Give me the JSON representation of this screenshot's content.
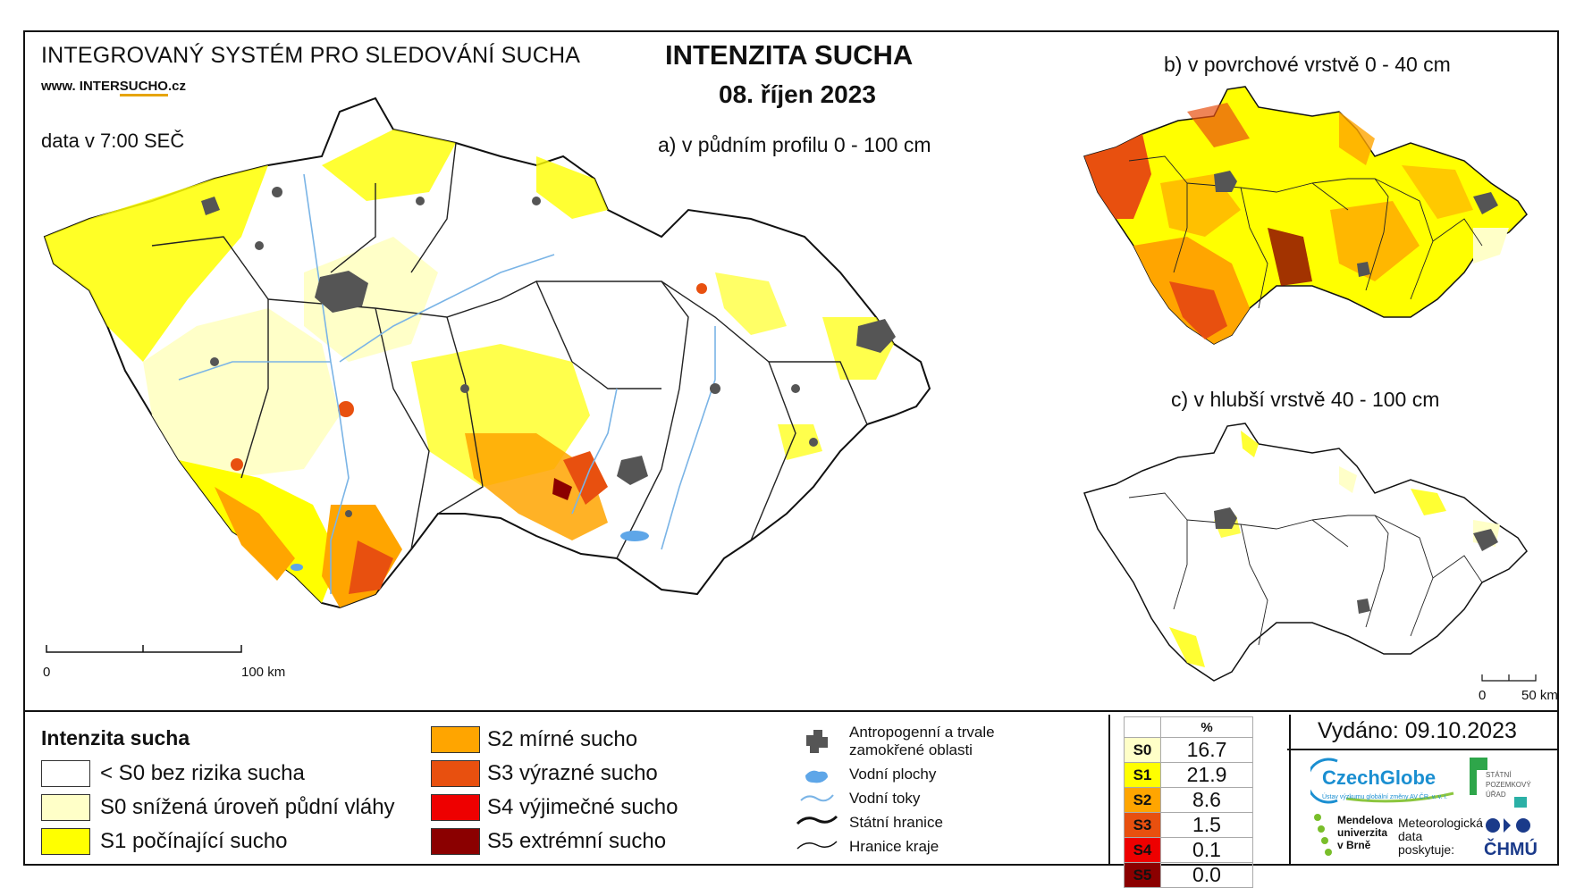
{
  "header": {
    "system": "INTEGROVANÝ SYSTÉM PRO SLEDOVÁNÍ SUCHA",
    "web_prefix": "www. INTER",
    "web_highlight": "SUCHO",
    "web_suffix": ".cz",
    "time": "data v 7:00 SEČ",
    "title": "INTENZITA SUCHA",
    "date": "08. říjen 2023"
  },
  "maps": {
    "a_label": "a) v půdním profilu 0 - 100 cm",
    "b_label": "b) v povrchové vrstvě 0 - 40 cm",
    "c_label": "c) v hlubší vrstvě 40 - 100 cm",
    "scale_main": {
      "start": "0",
      "end": "100 km"
    },
    "scale_small": {
      "start": "0",
      "end": "50 km"
    }
  },
  "legend": {
    "title": "Intenzita sucha",
    "classes": [
      {
        "label": "< S0 bez rizika sucha",
        "color": "#ffffff"
      },
      {
        "label": "S0 snížená úroveň půdní vláhy",
        "color": "#ffffc8"
      },
      {
        "label": "S1 počínající sucho",
        "color": "#ffff00"
      },
      {
        "label": "S2 mírné sucho",
        "color": "#ffa500"
      },
      {
        "label": "S3 výrazné sucho",
        "color": "#e8500f"
      },
      {
        "label": "S4 výjimečné sucho",
        "color": "#ee0000"
      },
      {
        "label": "S5 extrémní sucho",
        "color": "#8b0000"
      }
    ],
    "features": [
      {
        "label": "Antropogenní a trvale zamokřené oblasti",
        "icon": "urban-area-icon"
      },
      {
        "label": "Vodní plochy",
        "icon": "water-body-icon"
      },
      {
        "label": "Vodní toky",
        "icon": "river-icon"
      },
      {
        "label": "Státní hranice",
        "icon": "state-border-icon"
      },
      {
        "label": "Hranice kraje",
        "icon": "region-border-icon"
      }
    ]
  },
  "stats": {
    "header": "%",
    "rows": [
      {
        "code": "S0",
        "value": "16.7",
        "color": "#ffffc8"
      },
      {
        "code": "S1",
        "value": "21.9",
        "color": "#ffff00"
      },
      {
        "code": "S2",
        "value": "8.6",
        "color": "#ffa500"
      },
      {
        "code": "S3",
        "value": "1.5",
        "color": "#e8500f"
      },
      {
        "code": "S4",
        "value": "0.1",
        "color": "#ee0000"
      },
      {
        "code": "S5",
        "value": "0.0",
        "color": "#8b0000"
      }
    ]
  },
  "issued": "Vydáno: 09.10.2023",
  "logos": {
    "czechglobe": "CzechGlobe",
    "czechglobe_sub": "Ústav výzkumu globální změny AV ČR, v. v. i.",
    "spu": [
      "STÁTNÍ",
      "POZEMKOVÝ",
      "ÚŘAD"
    ],
    "mendelu": [
      "Mendelova",
      "univerzita",
      "v Brně"
    ],
    "met": [
      "Meteorologická",
      "data",
      "poskytuje:"
    ],
    "chmu": "ČHMÚ"
  }
}
